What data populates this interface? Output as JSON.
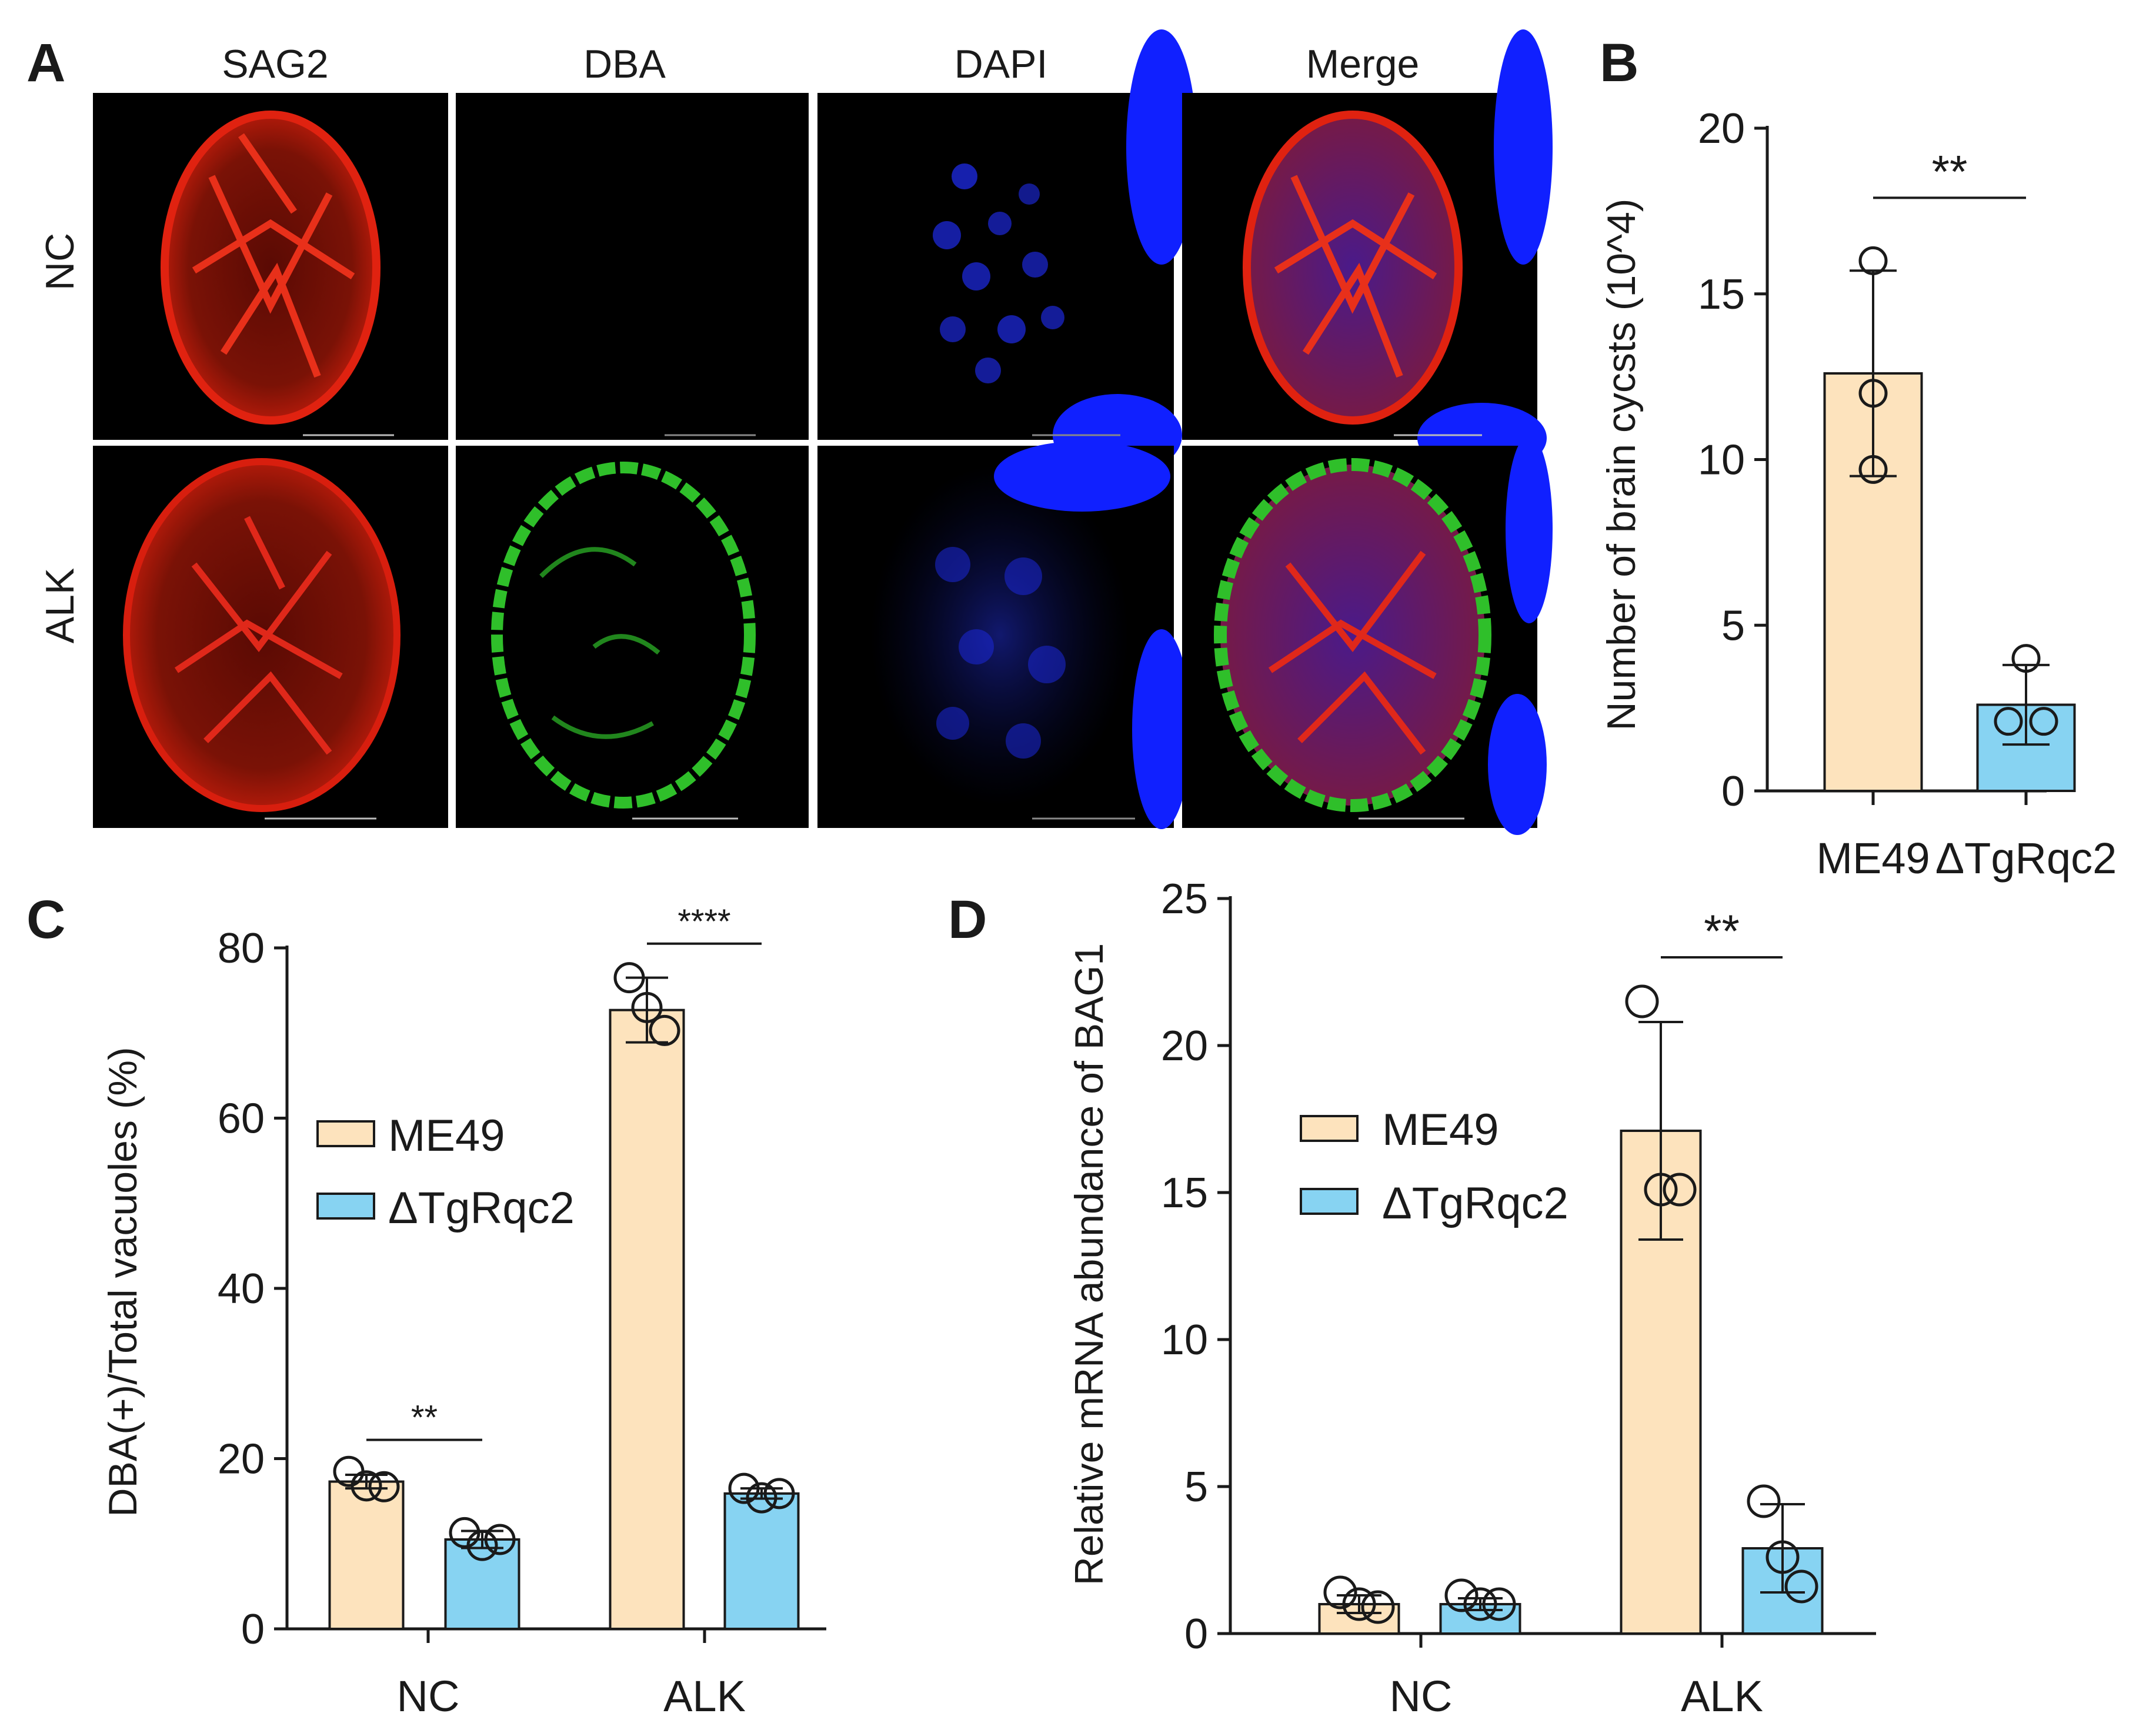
{
  "panel_a": {
    "letter": "A",
    "columns": [
      "SAG2",
      "DBA",
      "DAPI",
      "Merge"
    ],
    "rows": [
      "NC",
      "ALK"
    ],
    "colors": {
      "sag2": "#e02210",
      "dba": "#2fbf2a",
      "dapi": "#1c28d8",
      "background": "#000000",
      "nucleus": "#1020ff"
    }
  },
  "legend": {
    "series": [
      {
        "name": "ME49",
        "color": "#fde3bd"
      },
      {
        "name": "ΔTgRqc2",
        "color": "#87d3f2"
      }
    ]
  },
  "chart_data": [
    {
      "panel": "B",
      "type": "bar",
      "categories": [
        "ME49",
        "ΔTgRqc2"
      ],
      "values": [
        12.6,
        2.6
      ],
      "errors": [
        3.1,
        1.2
      ],
      "points": [
        [
          16.0,
          12.0,
          9.7
        ],
        [
          4.0,
          2.1,
          2.1
        ]
      ],
      "colors": [
        "#fde3bd",
        "#87d3f2"
      ],
      "ylabel": "Number of brain cycsts (10^4)",
      "ylim": [
        0,
        20
      ],
      "yticks": [
        0,
        5,
        10,
        15,
        20
      ],
      "significance": [
        {
          "label": "**",
          "between": [
            0,
            1
          ],
          "y": 17.9
        }
      ]
    },
    {
      "panel": "C",
      "type": "bar",
      "categories": [
        "NC",
        "ALK"
      ],
      "series": [
        {
          "name": "ME49",
          "values": [
            17.3,
            72.7
          ],
          "errors": [
            0.8,
            3.8
          ],
          "points": [
            [
              18.5,
              16.8,
              16.7
            ],
            [
              76.5,
              73.0,
              70.3
            ]
          ]
        },
        {
          "name": "ΔTgRqc2",
          "values": [
            10.5,
            15.9
          ],
          "errors": [
            1.0,
            0.6
          ],
          "points": [
            [
              11.3,
              9.8,
              10.5
            ],
            [
              16.5,
              15.4,
              15.9
            ]
          ]
        }
      ],
      "ylabel": "DBA(+)/Total vacuoles (%)",
      "ylim": [
        0,
        80
      ],
      "yticks": [
        0,
        20,
        40,
        60,
        80
      ],
      "significance": [
        {
          "label": "**",
          "category": 0,
          "y": 22.2
        },
        {
          "label": "****",
          "category": 1,
          "y": 80.5
        }
      ]
    },
    {
      "panel": "D",
      "type": "bar",
      "categories": [
        "NC",
        "ALK"
      ],
      "series": [
        {
          "name": "ME49",
          "values": [
            1.0,
            17.1
          ],
          "errors": [
            0.3,
            3.7
          ],
          "points": [
            [
              1.4,
              1.0,
              0.9
            ],
            [
              21.5,
              15.1,
              15.1
            ]
          ]
        },
        {
          "name": "ΔTgRqc2",
          "values": [
            1.0,
            2.9
          ],
          "errors": [
            0.2,
            1.5
          ],
          "points": [
            [
              1.3,
              1.0,
              1.0
            ],
            [
              4.5,
              2.6,
              1.6
            ]
          ]
        }
      ],
      "ylabel": "Relative mRNA abundance of BAG1",
      "ylim": [
        0,
        25
      ],
      "yticks": [
        0,
        5,
        10,
        15,
        20,
        25
      ],
      "significance": [
        {
          "label": "**",
          "category": 1,
          "y": 23.0
        }
      ]
    }
  ]
}
